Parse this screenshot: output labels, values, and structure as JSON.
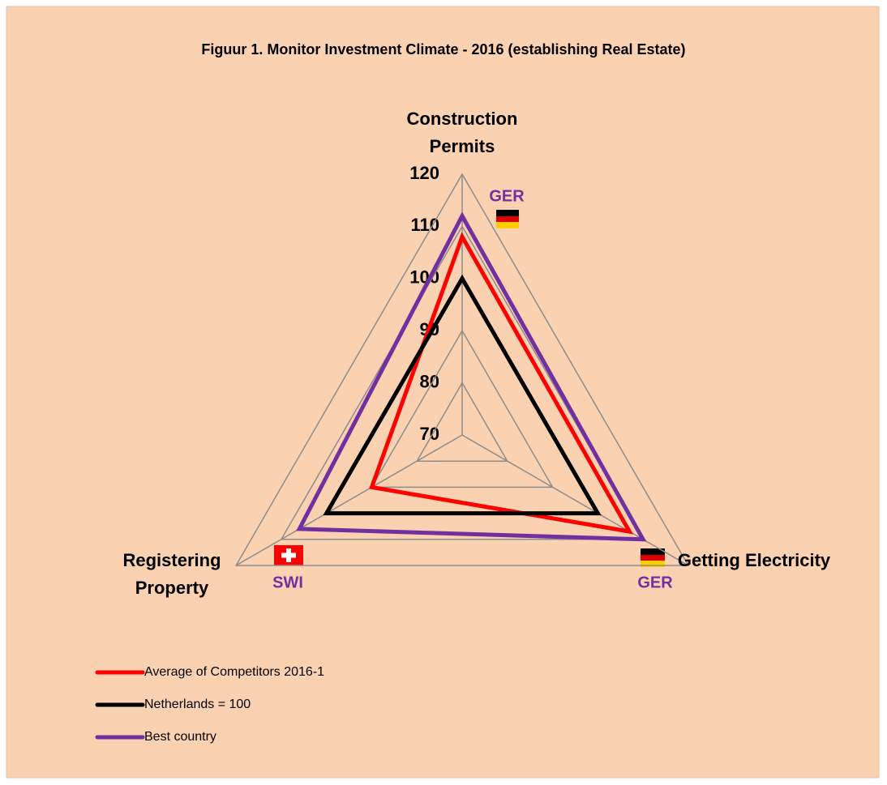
{
  "chart_data": {
    "type": "radar",
    "title": "Figuur 1. Monitor Investment Climate - 2016 (establishing Real Estate)",
    "categories": [
      "Construction Permits",
      "Getting Electricity",
      "Registering Property"
    ],
    "series": [
      {
        "name": "Average of Competitors 2016-1",
        "color": "#ff0000",
        "values": [
          108,
          107,
          90
        ]
      },
      {
        "name": "Netherlands = 100",
        "color": "#000000",
        "values": [
          100,
          100,
          100
        ]
      },
      {
        "name": "Best country",
        "color": "#7030a0",
        "values": [
          112,
          110,
          106
        ]
      }
    ],
    "ylim": [
      70,
      120
    ],
    "yticks": [
      70,
      80,
      90,
      100,
      110,
      120
    ],
    "grid": true,
    "annotations": [
      "GER",
      "GER",
      "SWI"
    ]
  }
}
